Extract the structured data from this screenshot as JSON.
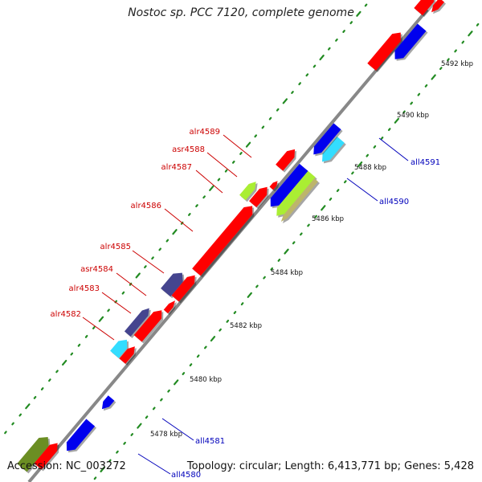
{
  "title": "Nostoc sp. PCC 7120, complete genome",
  "footer": {
    "accession": "Accession: NC_003272",
    "stats": "Topology: circular; Length: 6,413,771 bp; Genes: 5,428"
  },
  "colors": {
    "backbone": "#888888",
    "red": "#ff0000",
    "blue": "#0000ee",
    "navy": "#45458f",
    "cyan": "#33ddff",
    "lime": "#aaee33",
    "olive": "#bdb56b",
    "dark_olive": "#6b8e23",
    "tick_green": "#228b22",
    "label_red": "#cc0000",
    "label_blue": "#0000bb"
  },
  "kbp_labels": [
    "5478 kbp",
    "5480 kbp",
    "5482 kbp",
    "5484 kbp",
    "5486 kbp",
    "5488 kbp",
    "5490 kbp",
    "5492 kbp"
  ],
  "left_labels": [
    "alr4582",
    "alr4583",
    "asr4584",
    "alr4585",
    "alr4586",
    "alr4587",
    "asr4588",
    "alr4589"
  ],
  "right_labels": [
    "all4580",
    "all4581",
    "all4590",
    "all4591"
  ]
}
